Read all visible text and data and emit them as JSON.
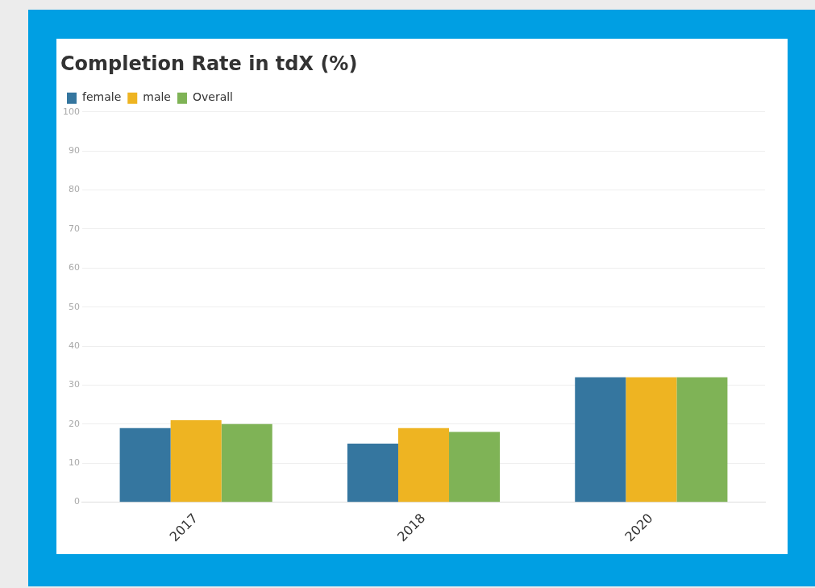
{
  "chart_data": {
    "type": "bar",
    "title": "Completion Rate in tdX (%)",
    "categories": [
      "2017",
      "2018",
      "2020"
    ],
    "series": [
      {
        "name": "female",
        "color": "#35769f",
        "values": [
          19,
          15,
          32
        ]
      },
      {
        "name": "male",
        "color": "#eeb422",
        "values": [
          21,
          19,
          32
        ]
      },
      {
        "name": "Overall",
        "color": "#7fb356",
        "values": [
          20,
          18,
          32
        ]
      }
    ],
    "ylim": [
      0,
      100
    ],
    "yticks": [
      0,
      10,
      20,
      30,
      40,
      50,
      60,
      70,
      80,
      90,
      100
    ],
    "grid": "y",
    "legend": "top left"
  }
}
